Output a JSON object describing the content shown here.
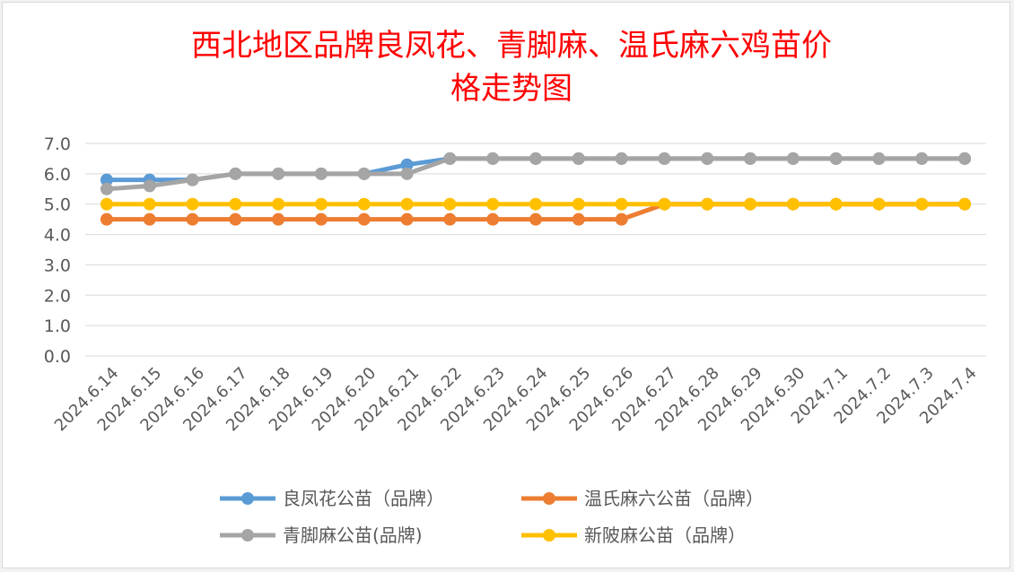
{
  "chart_data": {
    "type": "line",
    "title_lines": [
      "西北地区品牌良凤花、青脚麻、温氏麻六鸡苗价",
      "格走势图"
    ],
    "categories": [
      "2024.6.14",
      "2024.6.15",
      "2024.6.16",
      "2024.6.17",
      "2024.6.18",
      "2024.6.19",
      "2024.6.20",
      "2024.6.21",
      "2024.6.22",
      "2024.6.23",
      "2024.6.24",
      "2024.6.25",
      "2024.6.26",
      "2024.6.27",
      "2024.6.28",
      "2024.6.29",
      "2024.6.30",
      "2024.7.1",
      "2024.7.2",
      "2024.7.3",
      "2024.7.4"
    ],
    "y_ticks": [
      "0.0",
      "1.0",
      "2.0",
      "3.0",
      "4.0",
      "5.0",
      "6.0",
      "7.0"
    ],
    "ylim": [
      0,
      7
    ],
    "grid": true,
    "legend_position": "bottom",
    "series": [
      {
        "name": "良凤花公苗（品牌）",
        "color": "#5b9bd5",
        "values": [
          5.8,
          5.8,
          5.8,
          6.0,
          6.0,
          6.0,
          6.0,
          6.3,
          6.5,
          6.5,
          6.5,
          6.5,
          6.5,
          6.5,
          6.5,
          6.5,
          6.5,
          6.5,
          6.5,
          6.5,
          6.5
        ]
      },
      {
        "name": "温氏麻六公苗（品牌）",
        "color": "#ed7d31",
        "values": [
          4.5,
          4.5,
          4.5,
          4.5,
          4.5,
          4.5,
          4.5,
          4.5,
          4.5,
          4.5,
          4.5,
          4.5,
          4.5,
          5.0,
          5.0,
          5.0,
          5.0,
          5.0,
          5.0,
          5.0,
          5.0
        ]
      },
      {
        "name": "青脚麻公苗(品牌)",
        "color": "#a5a5a5",
        "values": [
          5.5,
          5.6,
          5.8,
          6.0,
          6.0,
          6.0,
          6.0,
          6.0,
          6.5,
          6.5,
          6.5,
          6.5,
          6.5,
          6.5,
          6.5,
          6.5,
          6.5,
          6.5,
          6.5,
          6.5,
          6.5
        ]
      },
      {
        "name": "新陂麻公苗（品牌）",
        "color": "#ffc000",
        "values": [
          5.0,
          5.0,
          5.0,
          5.0,
          5.0,
          5.0,
          5.0,
          5.0,
          5.0,
          5.0,
          5.0,
          5.0,
          5.0,
          5.0,
          5.0,
          5.0,
          5.0,
          5.0,
          5.0,
          5.0,
          5.0
        ]
      }
    ]
  }
}
